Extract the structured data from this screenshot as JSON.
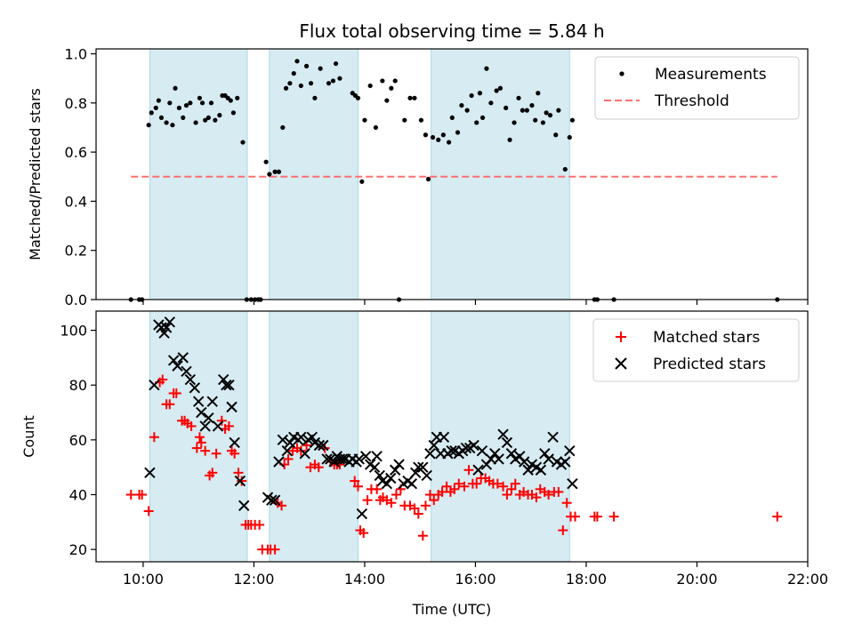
{
  "chart_data": [
    {
      "type": "scatter",
      "title": "Flux total observing time = 5.84 h",
      "xlabel": "",
      "ylabel": "Matched/Predicted stars",
      "xlim": [
        9.15,
        22.0
      ],
      "ylim": [
        0.0,
        1.02
      ],
      "yticks": [
        0.0,
        0.2,
        0.4,
        0.6,
        0.8,
        1.0
      ],
      "ytick_labels": [
        "0.0",
        "0.2",
        "0.4",
        "0.6",
        "0.8",
        "1.0"
      ],
      "legend_position": "top-right",
      "shaded_intervals": [
        [
          10.12,
          11.88
        ],
        [
          12.28,
          13.88
        ],
        [
          15.2,
          17.7
        ]
      ],
      "threshold": {
        "name": "Threshold",
        "y": 0.5,
        "x_range": [
          9.78,
          21.45
        ],
        "color": "#ff7070"
      },
      "series": [
        {
          "name": "Measurements",
          "color": "#000000",
          "marker": "dot",
          "x": [
            9.78,
            9.93,
            9.98,
            10.1,
            10.15,
            10.23,
            10.28,
            10.33,
            10.42,
            10.48,
            10.53,
            10.58,
            10.65,
            10.72,
            10.78,
            10.85,
            10.95,
            11.02,
            11.07,
            11.12,
            11.18,
            11.23,
            11.3,
            11.38,
            11.43,
            11.48,
            11.53,
            11.58,
            11.63,
            11.7,
            11.8,
            11.87,
            11.95,
            12.02,
            12.08,
            12.12,
            12.22,
            12.28,
            12.38,
            12.45,
            12.52,
            12.58,
            12.65,
            12.72,
            12.78,
            12.85,
            12.95,
            13.03,
            13.1,
            13.2,
            13.35,
            13.43,
            13.48,
            13.55,
            13.78,
            13.83,
            13.88,
            13.95,
            14.0,
            14.1,
            14.2,
            14.32,
            14.4,
            14.48,
            14.55,
            14.62,
            14.72,
            14.82,
            14.9,
            15.02,
            15.1,
            15.15,
            15.23,
            15.33,
            15.42,
            15.52,
            15.58,
            15.68,
            15.75,
            15.85,
            15.93,
            16.02,
            16.08,
            16.13,
            16.2,
            16.28,
            16.38,
            16.45,
            16.55,
            16.62,
            16.7,
            16.78,
            16.85,
            16.93,
            17.02,
            17.08,
            17.13,
            17.22,
            17.28,
            17.35,
            17.45,
            17.5,
            17.62,
            17.7,
            17.75,
            18.15,
            18.2,
            18.5,
            21.45
          ],
          "y": [
            0.0,
            0.0,
            0.0,
            0.71,
            0.76,
            0.78,
            0.81,
            0.74,
            0.72,
            0.8,
            0.71,
            0.86,
            0.78,
            0.74,
            0.79,
            0.8,
            0.72,
            0.82,
            0.8,
            0.73,
            0.74,
            0.8,
            0.73,
            0.75,
            0.83,
            0.83,
            0.82,
            0.81,
            0.76,
            0.82,
            0.64,
            0.0,
            0.0,
            0.0,
            0.0,
            0.0,
            0.56,
            0.51,
            0.52,
            0.52,
            0.7,
            0.86,
            0.88,
            0.92,
            0.97,
            0.87,
            0.95,
            0.88,
            0.82,
            0.94,
            0.88,
            0.89,
            0.96,
            0.9,
            0.84,
            0.83,
            0.82,
            0.48,
            0.73,
            0.87,
            0.7,
            0.89,
            0.81,
            0.86,
            0.89,
            0.0,
            0.73,
            0.82,
            0.82,
            0.73,
            0.67,
            0.49,
            0.66,
            0.65,
            0.67,
            0.64,
            0.74,
            0.68,
            0.79,
            0.77,
            0.83,
            0.72,
            0.84,
            0.74,
            0.94,
            0.8,
            0.85,
            0.86,
            0.78,
            0.65,
            0.72,
            0.82,
            0.77,
            0.77,
            0.79,
            0.73,
            0.84,
            0.72,
            0.76,
            0.75,
            0.67,
            0.77,
            0.53,
            0.66,
            0.73,
            0.0,
            0.0,
            0.0,
            0.0
          ]
        }
      ]
    },
    {
      "type": "scatter",
      "title": "",
      "xlabel": "Time (UTC)",
      "ylabel": "Count",
      "xlim": [
        9.15,
        22.0
      ],
      "ylim": [
        15.5,
        107
      ],
      "xticks": [
        10,
        12,
        14,
        16,
        18,
        20,
        22
      ],
      "xtick_labels": [
        "10:00",
        "12:00",
        "14:00",
        "16:00",
        "18:00",
        "20:00",
        "22:00"
      ],
      "yticks": [
        20,
        40,
        60,
        80,
        100
      ],
      "ytick_labels": [
        "20",
        "40",
        "60",
        "80",
        "100"
      ],
      "legend_position": "top-right",
      "shaded_intervals": [
        [
          10.12,
          11.88
        ],
        [
          12.28,
          13.88
        ],
        [
          15.2,
          17.7
        ]
      ],
      "series": [
        {
          "name": "Matched stars",
          "color": "#ff0000",
          "marker": "plus",
          "x": [
            9.78,
            9.93,
            9.98,
            10.1,
            10.2,
            10.3,
            10.35,
            10.42,
            10.48,
            10.55,
            10.6,
            10.7,
            10.75,
            10.8,
            10.87,
            10.97,
            11.02,
            11.05,
            11.12,
            11.2,
            11.25,
            11.32,
            11.42,
            11.48,
            11.55,
            11.6,
            11.65,
            11.72,
            11.78,
            11.85,
            11.9,
            11.95,
            12.02,
            12.1,
            12.15,
            12.25,
            12.3,
            12.38,
            12.43,
            12.5,
            12.55,
            12.62,
            12.7,
            12.78,
            12.85,
            12.95,
            13.02,
            13.1,
            13.17,
            13.28,
            13.4,
            13.45,
            13.5,
            13.55,
            13.82,
            13.88,
            13.92,
            13.98,
            14.05,
            14.12,
            14.22,
            14.28,
            14.33,
            14.4,
            14.48,
            14.57,
            14.65,
            14.72,
            14.82,
            14.9,
            14.97,
            15.05,
            15.1,
            15.18,
            15.25,
            15.33,
            15.4,
            15.48,
            15.55,
            15.62,
            15.7,
            15.8,
            15.88,
            15.95,
            16.02,
            16.1,
            16.18,
            16.25,
            16.32,
            16.4,
            16.5,
            16.57,
            16.65,
            16.72,
            16.8,
            16.87,
            16.95,
            17.02,
            17.1,
            17.17,
            17.25,
            17.32,
            17.42,
            17.5,
            17.58,
            17.65,
            17.72,
            17.8,
            18.15,
            18.2,
            18.5,
            21.45
          ],
          "y": [
            40,
            40,
            40,
            34,
            61,
            81,
            82,
            73,
            73,
            77,
            77,
            67,
            67,
            66,
            65,
            57,
            61,
            59,
            56,
            47,
            48,
            55,
            67,
            64,
            65,
            56,
            55,
            48,
            45,
            29,
            29,
            29,
            29,
            29,
            20,
            20,
            20,
            20,
            37,
            36,
            51,
            53,
            56,
            57,
            56,
            58,
            50,
            51,
            50,
            57,
            52,
            51,
            51,
            51,
            45,
            43,
            27,
            26,
            38,
            42,
            42,
            38,
            39,
            38,
            37,
            40,
            42,
            36,
            36,
            35,
            33,
            25,
            36,
            40,
            38,
            40,
            41,
            43,
            41,
            42,
            44,
            43,
            49,
            44,
            44,
            46,
            46,
            45,
            44,
            44,
            43,
            40,
            42,
            44,
            40,
            41,
            40,
            40,
            39,
            42,
            41,
            40,
            41,
            41,
            27,
            37,
            32,
            32,
            32,
            32,
            32,
            32
          ],
          "markers_note": ""
        },
        {
          "name": "Predicted stars",
          "color": "#000000",
          "marker": "x",
          "x": [
            10.12,
            10.2,
            10.28,
            10.33,
            10.38,
            10.42,
            10.48,
            10.55,
            10.62,
            10.72,
            10.78,
            10.85,
            10.93,
            11.0,
            11.05,
            11.12,
            11.18,
            11.25,
            11.35,
            11.45,
            11.5,
            11.55,
            11.6,
            11.65,
            11.75,
            11.82,
            12.25,
            12.32,
            12.38,
            12.45,
            12.52,
            12.6,
            12.65,
            12.72,
            12.8,
            12.85,
            12.92,
            12.98,
            13.05,
            13.1,
            13.18,
            13.25,
            13.32,
            13.38,
            13.45,
            13.5,
            13.55,
            13.6,
            13.65,
            13.72,
            13.78,
            13.85,
            13.9,
            13.95,
            14.02,
            14.1,
            14.18,
            14.22,
            14.27,
            14.32,
            14.4,
            14.47,
            14.55,
            14.62,
            14.7,
            14.78,
            14.85,
            14.92,
            14.97,
            15.05,
            15.12,
            15.18,
            15.25,
            15.3,
            15.37,
            15.43,
            15.5,
            15.57,
            15.63,
            15.7,
            15.77,
            15.83,
            15.9,
            15.97,
            16.05,
            16.12,
            16.2,
            16.28,
            16.35,
            16.42,
            16.5,
            16.57,
            16.65,
            16.72,
            16.8,
            16.88,
            16.95,
            17.02,
            17.1,
            17.18,
            17.25,
            17.32,
            17.4,
            17.47,
            17.55,
            17.62,
            17.7,
            17.75
          ],
          "y": [
            48,
            80,
            102,
            101,
            99,
            101,
            103,
            89,
            87,
            90,
            85,
            82,
            79,
            74,
            70,
            65,
            68,
            74,
            65,
            82,
            80,
            80,
            72,
            59,
            45,
            36,
            39,
            38,
            38,
            52,
            60,
            56,
            59,
            61,
            60,
            61,
            55,
            60,
            61,
            59,
            58,
            58,
            53,
            53,
            52,
            54,
            53,
            53,
            53,
            52,
            53,
            52,
            53,
            33,
            54,
            51,
            50,
            54,
            47,
            45,
            44,
            46,
            49,
            51,
            44,
            45,
            44,
            48,
            50,
            50,
            47,
            55,
            58,
            61,
            55,
            61,
            55,
            56,
            56,
            55,
            56,
            57,
            57,
            58,
            49,
            56,
            51,
            53,
            55,
            53,
            62,
            59,
            55,
            53,
            54,
            52,
            49,
            51,
            50,
            49,
            55,
            53,
            61,
            52,
            51,
            52,
            56,
            44
          ]
        }
      ]
    }
  ]
}
